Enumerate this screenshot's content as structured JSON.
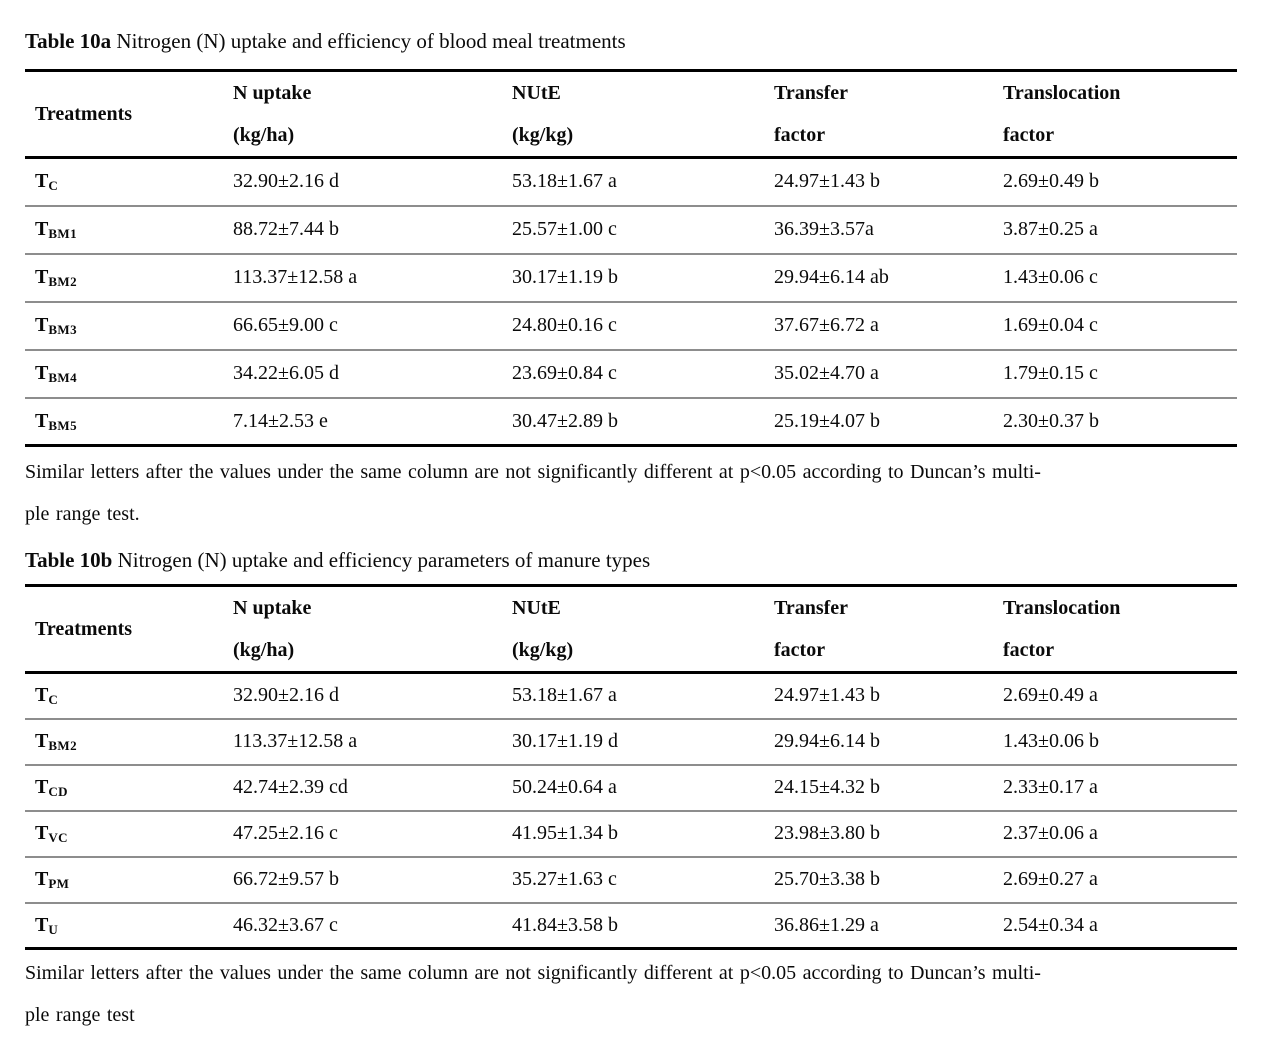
{
  "table_a": {
    "title_bold": "Table 10a",
    "title_rest": " Nitrogen (N) uptake and efficiency of blood meal treatments",
    "columns": [
      {
        "line1": "Treatments",
        "line2": ""
      },
      {
        "line1": "N uptake",
        "line2": "(kg/ha)"
      },
      {
        "line1": "NUtE",
        "line2": "(kg/kg)"
      },
      {
        "line1": "Transfer",
        "line2": "factor"
      },
      {
        "line1": "Translocation",
        "line2": "factor"
      }
    ],
    "rows": [
      {
        "treatment_base": "T",
        "treatment_sub": "C",
        "n_uptake": "32.90±2.16 d",
        "nute": "53.18±1.67 a",
        "transfer": "24.97±1.43 b",
        "translocation": "2.69±0.49 b"
      },
      {
        "treatment_base": "T",
        "treatment_sub": "BM1",
        "n_uptake": "88.72±7.44 b",
        "nute": "25.57±1.00 c",
        "transfer": "36.39±3.57a",
        "translocation": "3.87±0.25 a"
      },
      {
        "treatment_base": "T",
        "treatment_sub": "BM2",
        "n_uptake": "113.37±12.58 a",
        "nute": "30.17±1.19 b",
        "transfer": "29.94±6.14 ab",
        "translocation": "1.43±0.06 c"
      },
      {
        "treatment_base": "T",
        "treatment_sub": "BM3",
        "n_uptake": "66.65±9.00 c",
        "nute": "24.80±0.16 c",
        "transfer": "37.67±6.72 a",
        "translocation": "1.69±0.04 c"
      },
      {
        "treatment_base": "T",
        "treatment_sub": "BM4",
        "n_uptake": "34.22±6.05 d",
        "nute": "23.69±0.84 c",
        "transfer": "35.02±4.70 a",
        "translocation": "1.79±0.15 c"
      },
      {
        "treatment_base": "T",
        "treatment_sub": "BM5",
        "n_uptake": "7.14±2.53 e",
        "nute": "30.47±2.89 b",
        "transfer": "25.19±4.07 b",
        "translocation": "2.30±0.37 b"
      }
    ],
    "footnote_line1": "Similar letters after the values under the same column are not significantly different at p<0.05 according to Duncan’s multi-",
    "footnote_line2": "ple range test."
  },
  "table_b": {
    "title_bold": "Table 10b",
    "title_rest": " Nitrogen (N) uptake and efficiency parameters of manure types",
    "columns": [
      {
        "line1": "Treatments",
        "line2": ""
      },
      {
        "line1": "N uptake",
        "line2": "(kg/ha)"
      },
      {
        "line1": "NUtE",
        "line2": "(kg/kg)"
      },
      {
        "line1": "Transfer",
        "line2": "factor"
      },
      {
        "line1": "Translocation",
        "line2": "factor"
      }
    ],
    "rows": [
      {
        "treatment_base": "T",
        "treatment_sub": "C",
        "n_uptake": "32.90±2.16 d",
        "nute": "53.18±1.67 a",
        "transfer": "24.97±1.43 b",
        "translocation": "2.69±0.49 a"
      },
      {
        "treatment_base": "T",
        "treatment_sub": "BM2",
        "n_uptake": "113.37±12.58 a",
        "nute": "30.17±1.19 d",
        "transfer": "29.94±6.14 b",
        "translocation": "1.43±0.06 b"
      },
      {
        "treatment_base": "T",
        "treatment_sub": "CD",
        "n_uptake": "42.74±2.39 cd",
        "nute": "50.24±0.64 a",
        "transfer": "24.15±4.32 b",
        "translocation": "2.33±0.17 a"
      },
      {
        "treatment_base": "T",
        "treatment_sub": "VC",
        "n_uptake": "47.25±2.16 c",
        "nute": "41.95±1.34 b",
        "transfer": "23.98±3.80 b",
        "translocation": "2.37±0.06 a"
      },
      {
        "treatment_base": "T",
        "treatment_sub": "PM",
        "n_uptake": "66.72±9.57 b",
        "nute": "35.27±1.63 c",
        "transfer": "25.70±3.38 b",
        "translocation": "2.69±0.27 a"
      },
      {
        "treatment_base": "T",
        "treatment_sub": "U",
        "n_uptake": "46.32±3.67 c",
        "nute": "41.84±3.58 b",
        "transfer": "36.86±1.29 a",
        "translocation": "2.54±0.34 a"
      }
    ],
    "footnote_line1": "Similar letters after the values under the same column are not significantly different at p<0.05 according to Duncan’s multi-",
    "footnote_line2": "ple range test"
  }
}
